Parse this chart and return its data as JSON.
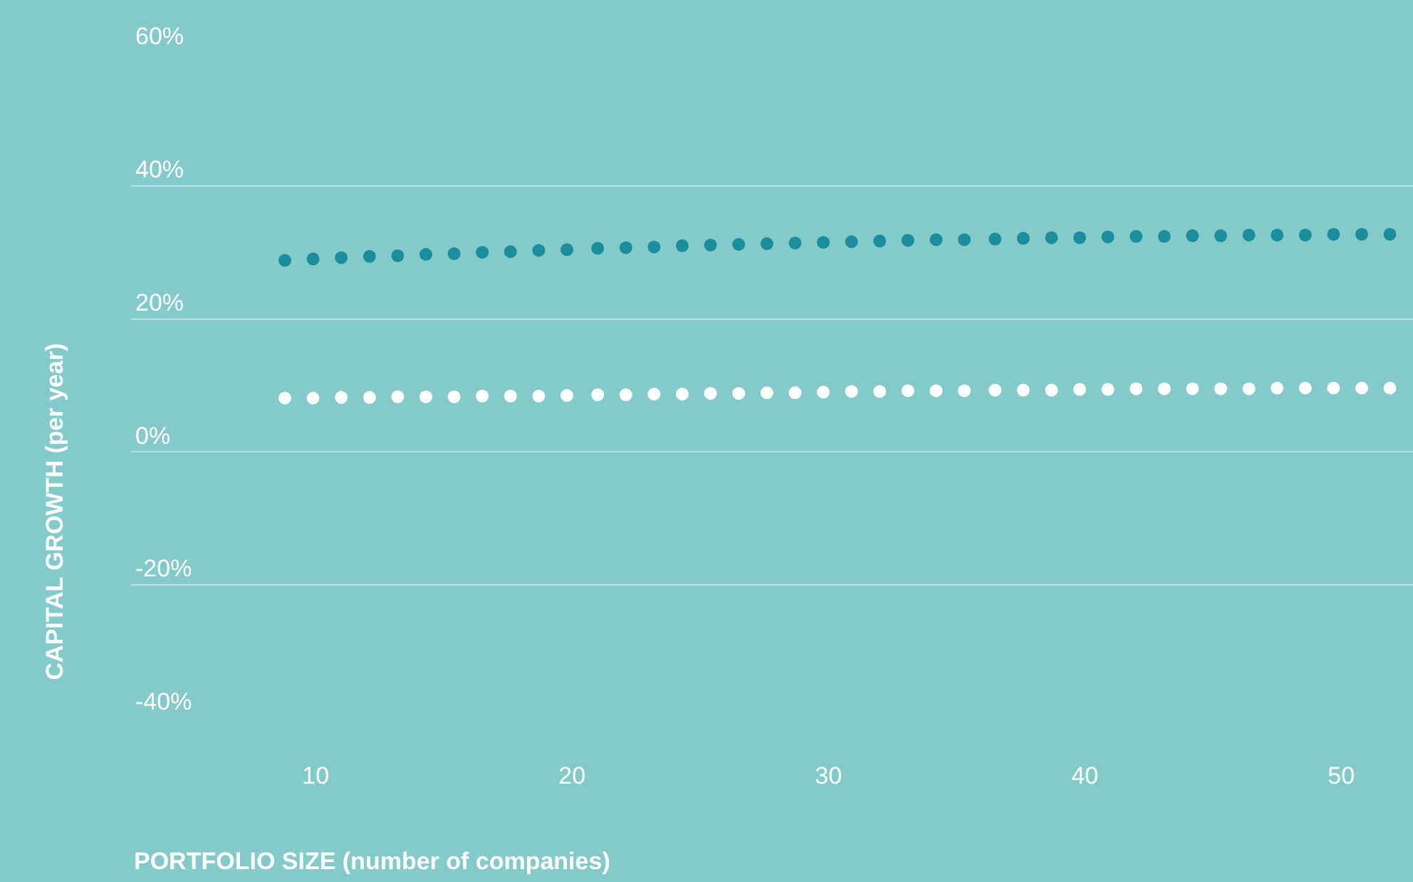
{
  "chart_data": {
    "type": "scatter",
    "xlabel": "PORTFOLIO SIZE (number of companies)",
    "ylabel": "CAPITAL GROWTH (per year)",
    "x": [
      8.8,
      9.9,
      11.0,
      12.1,
      13.2,
      14.3,
      15.4,
      16.5,
      17.6,
      18.7,
      19.8,
      21.0,
      22.1,
      23.2,
      24.3,
      25.4,
      26.5,
      27.6,
      28.7,
      29.8,
      30.9,
      32.0,
      33.1,
      34.2,
      35.3,
      36.5,
      37.6,
      38.7,
      39.8,
      40.9,
      42.0,
      43.1,
      44.2,
      45.3,
      46.4,
      47.5,
      48.6,
      49.7,
      50.8,
      51.9
    ],
    "series": [
      {
        "color": "#1a8e9c",
        "values": [
          28.8,
          29.0,
          29.2,
          29.4,
          29.5,
          29.7,
          29.8,
          30.0,
          30.1,
          30.3,
          30.4,
          30.6,
          30.7,
          30.8,
          31.0,
          31.1,
          31.2,
          31.3,
          31.4,
          31.5,
          31.6,
          31.7,
          31.8,
          31.9,
          31.9,
          32.0,
          32.1,
          32.2,
          32.2,
          32.3,
          32.4,
          32.4,
          32.5,
          32.5,
          32.6,
          32.6,
          32.6,
          32.7,
          32.7,
          32.7
        ]
      },
      {
        "color": "#ffffff",
        "values": [
          8.1,
          8.1,
          8.2,
          8.2,
          8.3,
          8.3,
          8.3,
          8.4,
          8.4,
          8.4,
          8.5,
          8.6,
          8.6,
          8.7,
          8.7,
          8.8,
          8.8,
          8.9,
          8.9,
          9.0,
          9.1,
          9.1,
          9.2,
          9.2,
          9.2,
          9.3,
          9.3,
          9.3,
          9.4,
          9.4,
          9.5,
          9.5,
          9.5,
          9.5,
          9.5,
          9.6,
          9.6,
          9.6,
          9.6,
          9.6
        ]
      }
    ],
    "xlim": [
      2.8,
      52.8
    ],
    "xticks": [
      10,
      20,
      30,
      40,
      50
    ],
    "ylim": [
      -40,
      60
    ],
    "yticks": [
      {
        "value": -40,
        "label": "-40%"
      },
      {
        "value": -20,
        "label": "-20%"
      },
      {
        "value": 0,
        "label": "0%"
      },
      {
        "value": 20,
        "label": "20%"
      },
      {
        "value": 40,
        "label": "40%"
      },
      {
        "value": 60,
        "label": "60%"
      }
    ],
    "grid": "y",
    "marker": "circle"
  }
}
